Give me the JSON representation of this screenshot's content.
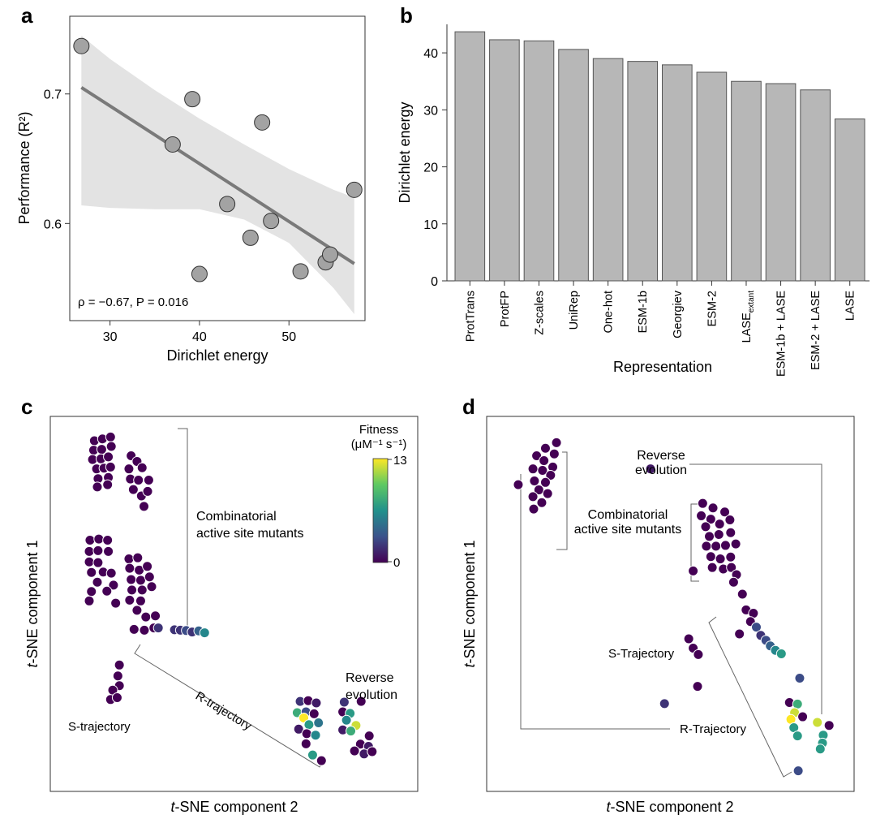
{
  "colors": {
    "point_fill": "#a3a3a3",
    "line": "#7a7a7a",
    "band": "#e3e3e3",
    "bar": "#b7b7b7",
    "viridis": [
      "#440154",
      "#3b528b",
      "#21918c",
      "#5ec962",
      "#fde725"
    ]
  },
  "panels": {
    "a": {
      "letter": "a",
      "annotation": "ρ = −0.67, P = 0.016"
    },
    "b": {
      "letter": "b"
    },
    "c": {
      "letter": "c"
    },
    "d": {
      "letter": "d"
    }
  },
  "chart_data": [
    {
      "panel": "a",
      "type": "scatter",
      "xlabel": "Dirichlet energy",
      "ylabel": "Performance (R²)",
      "xlim": [
        25.5,
        58.5
      ],
      "ylim": [
        0.525,
        0.76
      ],
      "xticks": [
        30,
        40,
        50
      ],
      "yticks": [
        0.6,
        0.7
      ],
      "points": [
        {
          "x": 26.8,
          "y": 0.737
        },
        {
          "x": 37.0,
          "y": 0.661
        },
        {
          "x": 39.2,
          "y": 0.696
        },
        {
          "x": 40.0,
          "y": 0.561
        },
        {
          "x": 43.1,
          "y": 0.615
        },
        {
          "x": 45.7,
          "y": 0.589
        },
        {
          "x": 47.0,
          "y": 0.678
        },
        {
          "x": 48.0,
          "y": 0.602
        },
        {
          "x": 51.3,
          "y": 0.563
        },
        {
          "x": 54.1,
          "y": 0.57
        },
        {
          "x": 54.6,
          "y": 0.576
        },
        {
          "x": 57.3,
          "y": 0.626
        }
      ],
      "fit": {
        "x": [
          26.8,
          57.3
        ],
        "y": [
          0.705,
          0.569
        ]
      },
      "band": {
        "x": [
          26.8,
          30,
          35,
          40,
          45,
          50,
          55,
          57.3
        ],
        "upper": [
          0.745,
          0.727,
          0.703,
          0.681,
          0.661,
          0.642,
          0.626,
          0.62
        ],
        "lower": [
          0.614,
          0.612,
          0.611,
          0.611,
          0.603,
          0.585,
          0.55,
          0.53
        ]
      },
      "grid": false
    },
    {
      "panel": "b",
      "type": "bar",
      "xlabel": "Representation",
      "ylabel": "Dirichlet energy",
      "ylim": [
        0,
        45
      ],
      "yticks": [
        0,
        10,
        20,
        30,
        40
      ],
      "categories": [
        {
          "main": "ProtTrans",
          "sub": ""
        },
        {
          "main": "ProtFP",
          "sub": ""
        },
        {
          "main": "Z-scales",
          "sub": ""
        },
        {
          "main": "UniRep",
          "sub": ""
        },
        {
          "main": "One-hot",
          "sub": ""
        },
        {
          "main": "ESM-1b",
          "sub": ""
        },
        {
          "main": "Georgiev",
          "sub": ""
        },
        {
          "main": "ESM-2",
          "sub": ""
        },
        {
          "main": "LASE",
          "sub": "extant"
        },
        {
          "main": "ESM-1b + LASE",
          "sub": ""
        },
        {
          "main": "ESM-2 + LASE",
          "sub": ""
        },
        {
          "main": "LASE",
          "sub": ""
        }
      ],
      "values": [
        43.7,
        42.3,
        42.1,
        40.6,
        39.0,
        38.5,
        37.9,
        36.6,
        35.0,
        34.6,
        33.5,
        28.4
      ],
      "grid": false
    },
    {
      "panel": "c",
      "type": "scatter",
      "xlabel": "t-SNE component 2",
      "ylabel": "t-SNE component 1",
      "ylabel_italic": "t",
      "ylabel_rest": "-SNE component 1",
      "xlabel_italic": "t",
      "xlabel_rest": "-SNE component 2",
      "xlim": [
        0,
        100
      ],
      "ylim": [
        0,
        100
      ],
      "colorbar": {
        "title_1": "Fitness",
        "title_2": "(μM⁻¹ s⁻¹)",
        "min": 0,
        "max": 13,
        "min_label": "0",
        "max_label": "13"
      },
      "annotations": [
        "Combinatorial",
        "active site mutants",
        "R-trajectory",
        "S-trajectory",
        "Reverse",
        "evolution"
      ],
      "points": [
        {
          "x": 12.0,
          "y": 93.5,
          "f": 0
        },
        {
          "x": 14.2,
          "y": 94.0,
          "f": 0
        },
        {
          "x": 16.4,
          "y": 94.5,
          "f": 0
        },
        {
          "x": 11.8,
          "y": 91.0,
          "f": 0
        },
        {
          "x": 14.0,
          "y": 91.2,
          "f": 0
        },
        {
          "x": 16.6,
          "y": 92.0,
          "f": 0
        },
        {
          "x": 11.5,
          "y": 88.5,
          "f": 0
        },
        {
          "x": 13.8,
          "y": 88.7,
          "f": 0
        },
        {
          "x": 15.8,
          "y": 89.2,
          "f": 0
        },
        {
          "x": 12.6,
          "y": 86.0,
          "f": 0
        },
        {
          "x": 14.6,
          "y": 86.2,
          "f": 0
        },
        {
          "x": 16.4,
          "y": 86.5,
          "f": 0
        },
        {
          "x": 13.0,
          "y": 83.4,
          "f": 0
        },
        {
          "x": 15.8,
          "y": 83.7,
          "f": 0
        },
        {
          "x": 12.8,
          "y": 81.2,
          "f": 0
        },
        {
          "x": 15.6,
          "y": 81.8,
          "f": 0
        },
        {
          "x": 22.0,
          "y": 89.5,
          "f": 0
        },
        {
          "x": 23.6,
          "y": 88.0,
          "f": 0
        },
        {
          "x": 21.4,
          "y": 86.0,
          "f": 0
        },
        {
          "x": 25.0,
          "y": 86.3,
          "f": 0
        },
        {
          "x": 21.8,
          "y": 83.3,
          "f": 0
        },
        {
          "x": 24.0,
          "y": 83.0,
          "f": 0
        },
        {
          "x": 26.8,
          "y": 83.0,
          "f": 0
        },
        {
          "x": 22.6,
          "y": 80.5,
          "f": 0
        },
        {
          "x": 24.8,
          "y": 78.8,
          "f": 0
        },
        {
          "x": 26.5,
          "y": 80.0,
          "f": 0
        },
        {
          "x": 25.5,
          "y": 76.0,
          "f": 0
        },
        {
          "x": 10.8,
          "y": 67.0,
          "f": 0
        },
        {
          "x": 13.2,
          "y": 67.3,
          "f": 0
        },
        {
          "x": 15.6,
          "y": 67.0,
          "f": 0
        },
        {
          "x": 10.6,
          "y": 64.0,
          "f": 0
        },
        {
          "x": 13.0,
          "y": 64.2,
          "f": 0
        },
        {
          "x": 15.8,
          "y": 64.0,
          "f": 0
        },
        {
          "x": 10.6,
          "y": 61.2,
          "f": 0
        },
        {
          "x": 13.0,
          "y": 61.0,
          "f": 0
        },
        {
          "x": 11.2,
          "y": 58.4,
          "f": 0
        },
        {
          "x": 14.4,
          "y": 58.5,
          "f": 0
        },
        {
          "x": 16.6,
          "y": 58.2,
          "f": 0
        },
        {
          "x": 12.8,
          "y": 55.8,
          "f": 0
        },
        {
          "x": 17.2,
          "y": 55.0,
          "f": 0
        },
        {
          "x": 11.2,
          "y": 53.3,
          "f": 0
        },
        {
          "x": 15.4,
          "y": 53.4,
          "f": 0
        },
        {
          "x": 10.6,
          "y": 50.8,
          "f": 0
        },
        {
          "x": 17.8,
          "y": 50.2,
          "f": 0
        },
        {
          "x": 21.4,
          "y": 62.0,
          "f": 0
        },
        {
          "x": 23.8,
          "y": 62.3,
          "f": 0
        },
        {
          "x": 21.6,
          "y": 59.5,
          "f": 0
        },
        {
          "x": 24.2,
          "y": 59.0,
          "f": 0
        },
        {
          "x": 26.4,
          "y": 60.0,
          "f": 0
        },
        {
          "x": 22.0,
          "y": 56.5,
          "f": 0
        },
        {
          "x": 24.6,
          "y": 56.3,
          "f": 0
        },
        {
          "x": 27.0,
          "y": 57.2,
          "f": 0
        },
        {
          "x": 22.2,
          "y": 53.7,
          "f": 0
        },
        {
          "x": 25.0,
          "y": 53.7,
          "f": 0
        },
        {
          "x": 27.6,
          "y": 54.6,
          "f": 0
        },
        {
          "x": 21.6,
          "y": 51.0,
          "f": 0
        },
        {
          "x": 24.6,
          "y": 50.8,
          "f": 0
        },
        {
          "x": 23.6,
          "y": 48.3,
          "f": 0
        },
        {
          "x": 26.0,
          "y": 46.5,
          "f": 0
        },
        {
          "x": 28.6,
          "y": 46.8,
          "f": 0
        },
        {
          "x": 25.6,
          "y": 43.0,
          "f": 0
        },
        {
          "x": 28.2,
          "y": 43.6,
          "f": 0
        },
        {
          "x": 22.8,
          "y": 43.2,
          "f": 0
        },
        {
          "x": 29.4,
          "y": 43.6,
          "f": 2
        },
        {
          "x": 33.8,
          "y": 43.1,
          "f": 2
        },
        {
          "x": 35.4,
          "y": 43.0,
          "f": 2
        },
        {
          "x": 37.0,
          "y": 42.9,
          "f": 3
        },
        {
          "x": 38.6,
          "y": 42.5,
          "f": 2
        },
        {
          "x": 40.4,
          "y": 42.8,
          "f": 4
        },
        {
          "x": 42.0,
          "y": 42.3,
          "f": 6
        },
        {
          "x": 18.8,
          "y": 33.7,
          "f": 0
        },
        {
          "x": 18.4,
          "y": 30.8,
          "f": 0
        },
        {
          "x": 18.8,
          "y": 28.2,
          "f": 0
        },
        {
          "x": 17.0,
          "y": 27.0,
          "f": 0
        },
        {
          "x": 16.4,
          "y": 24.5,
          "f": 0
        },
        {
          "x": 18.2,
          "y": 25.0,
          "f": 0
        },
        {
          "x": 68.0,
          "y": 24.0,
          "f": 2
        },
        {
          "x": 70.2,
          "y": 24.2,
          "f": 0
        },
        {
          "x": 72.4,
          "y": 23.6,
          "f": 1
        },
        {
          "x": 67.2,
          "y": 21.0,
          "f": 8
        },
        {
          "x": 69.6,
          "y": 21.2,
          "f": 3
        },
        {
          "x": 71.8,
          "y": 20.7,
          "f": 0
        },
        {
          "x": 69.0,
          "y": 19.6,
          "f": 13
        },
        {
          "x": 73.0,
          "y": 18.3,
          "f": 5
        },
        {
          "x": 70.4,
          "y": 17.8,
          "f": 7
        },
        {
          "x": 67.6,
          "y": 16.6,
          "f": 1
        },
        {
          "x": 69.8,
          "y": 15.4,
          "f": 0
        },
        {
          "x": 72.2,
          "y": 15.0,
          "f": 6
        },
        {
          "x": 69.6,
          "y": 12.7,
          "f": 0
        },
        {
          "x": 71.4,
          "y": 9.7,
          "f": 7
        },
        {
          "x": 73.8,
          "y": 8.2,
          "f": 0
        },
        {
          "x": 80.0,
          "y": 23.8,
          "f": 2
        },
        {
          "x": 84.6,
          "y": 24.0,
          "f": 0
        },
        {
          "x": 79.6,
          "y": 21.2,
          "f": 0
        },
        {
          "x": 81.6,
          "y": 20.8,
          "f": 7
        },
        {
          "x": 80.6,
          "y": 19.0,
          "f": 6
        },
        {
          "x": 83.2,
          "y": 17.6,
          "f": 12
        },
        {
          "x": 79.6,
          "y": 16.4,
          "f": 1
        },
        {
          "x": 81.8,
          "y": 16.1,
          "f": 8
        },
        {
          "x": 86.8,
          "y": 14.8,
          "f": 0
        },
        {
          "x": 84.4,
          "y": 12.6,
          "f": 0
        },
        {
          "x": 86.6,
          "y": 12.0,
          "f": 1
        },
        {
          "x": 82.8,
          "y": 10.8,
          "f": 0
        },
        {
          "x": 85.4,
          "y": 10.0,
          "f": 1
        },
        {
          "x": 87.6,
          "y": 10.6,
          "f": 0
        }
      ]
    },
    {
      "panel": "d",
      "type": "scatter",
      "xlabel": "t-SNE component 2",
      "ylabel": "t-SNE component 1",
      "xlabel_italic": "t",
      "xlabel_rest": "-SNE component 2",
      "ylabel_italic": "t",
      "ylabel_rest": "-SNE component 1",
      "xlim": [
        0,
        100
      ],
      "ylim": [
        0,
        100
      ],
      "annotations": [
        "Reverse",
        "evolution",
        "Combinatorial",
        "active site mutants",
        "S-Trajectory",
        "R-Trajectory"
      ],
      "points": [
        {
          "x": 19.0,
          "y": 93.0,
          "f": 0
        },
        {
          "x": 16.0,
          "y": 91.5,
          "f": 0
        },
        {
          "x": 18.4,
          "y": 90.0,
          "f": 0
        },
        {
          "x": 13.6,
          "y": 89.5,
          "f": 0
        },
        {
          "x": 15.6,
          "y": 88.2,
          "f": 0
        },
        {
          "x": 18.0,
          "y": 86.5,
          "f": 0
        },
        {
          "x": 12.6,
          "y": 86.0,
          "f": 0
        },
        {
          "x": 15.2,
          "y": 85.6,
          "f": 0
        },
        {
          "x": 17.4,
          "y": 84.3,
          "f": 0
        },
        {
          "x": 13.0,
          "y": 82.8,
          "f": 0
        },
        {
          "x": 16.0,
          "y": 82.4,
          "f": 0
        },
        {
          "x": 8.6,
          "y": 81.8,
          "f": 0
        },
        {
          "x": 14.2,
          "y": 80.4,
          "f": 0
        },
        {
          "x": 16.6,
          "y": 79.4,
          "f": 0
        },
        {
          "x": 12.6,
          "y": 78.6,
          "f": 0
        },
        {
          "x": 15.0,
          "y": 77.0,
          "f": 0
        },
        {
          "x": 12.8,
          "y": 75.3,
          "f": 0
        },
        {
          "x": 44.6,
          "y": 86.0,
          "f": 1
        },
        {
          "x": 58.8,
          "y": 76.8,
          "f": 0
        },
        {
          "x": 61.6,
          "y": 75.6,
          "f": 0
        },
        {
          "x": 58.4,
          "y": 73.5,
          "f": 0
        },
        {
          "x": 61.0,
          "y": 72.6,
          "f": 0
        },
        {
          "x": 64.8,
          "y": 74.5,
          "f": 0
        },
        {
          "x": 59.6,
          "y": 70.6,
          "f": 0
        },
        {
          "x": 63.4,
          "y": 71.3,
          "f": 0
        },
        {
          "x": 66.2,
          "y": 72.4,
          "f": 0
        },
        {
          "x": 60.6,
          "y": 68.0,
          "f": 0
        },
        {
          "x": 63.2,
          "y": 68.5,
          "f": 0
        },
        {
          "x": 66.4,
          "y": 69.0,
          "f": 0
        },
        {
          "x": 59.8,
          "y": 65.4,
          "f": 0
        },
        {
          "x": 62.4,
          "y": 65.4,
          "f": 0
        },
        {
          "x": 65.0,
          "y": 65.6,
          "f": 0
        },
        {
          "x": 67.8,
          "y": 66.0,
          "f": 0
        },
        {
          "x": 61.0,
          "y": 62.6,
          "f": 0
        },
        {
          "x": 63.6,
          "y": 62.0,
          "f": 0
        },
        {
          "x": 66.4,
          "y": 62.5,
          "f": 0
        },
        {
          "x": 61.4,
          "y": 59.7,
          "f": 0
        },
        {
          "x": 64.4,
          "y": 59.3,
          "f": 0
        },
        {
          "x": 66.6,
          "y": 59.7,
          "f": 0
        },
        {
          "x": 68.0,
          "y": 57.8,
          "f": 0
        },
        {
          "x": 56.2,
          "y": 58.8,
          "f": 0
        },
        {
          "x": 67.2,
          "y": 55.8,
          "f": 0
        },
        {
          "x": 69.6,
          "y": 52.6,
          "f": 0
        },
        {
          "x": 70.6,
          "y": 48.4,
          "f": 0
        },
        {
          "x": 72.6,
          "y": 47.5,
          "f": 0
        },
        {
          "x": 71.8,
          "y": 45.3,
          "f": 0
        },
        {
          "x": 73.4,
          "y": 43.8,
          "f": 3
        },
        {
          "x": 68.8,
          "y": 42.0,
          "f": 0
        },
        {
          "x": 74.6,
          "y": 41.6,
          "f": 2
        },
        {
          "x": 76.0,
          "y": 40.3,
          "f": 3
        },
        {
          "x": 77.2,
          "y": 38.8,
          "f": 4
        },
        {
          "x": 78.6,
          "y": 37.6,
          "f": 6
        },
        {
          "x": 80.2,
          "y": 36.7,
          "f": 7
        },
        {
          "x": 55.0,
          "y": 40.7,
          "f": 0
        },
        {
          "x": 56.2,
          "y": 38.2,
          "f": 0
        },
        {
          "x": 57.6,
          "y": 36.5,
          "f": 0
        },
        {
          "x": 57.4,
          "y": 28.0,
          "f": 0
        },
        {
          "x": 48.4,
          "y": 23.4,
          "f": 2
        },
        {
          "x": 85.2,
          "y": 30.2,
          "f": 3
        },
        {
          "x": 82.4,
          "y": 23.7,
          "f": 0
        },
        {
          "x": 84.6,
          "y": 23.3,
          "f": 8
        },
        {
          "x": 83.8,
          "y": 21.0,
          "f": 12
        },
        {
          "x": 86.0,
          "y": 19.9,
          "f": 0
        },
        {
          "x": 82.8,
          "y": 19.2,
          "f": 13
        },
        {
          "x": 83.6,
          "y": 17.0,
          "f": 7
        },
        {
          "x": 84.6,
          "y": 14.8,
          "f": 7
        },
        {
          "x": 90.0,
          "y": 18.4,
          "f": 12
        },
        {
          "x": 93.2,
          "y": 17.6,
          "f": 0
        },
        {
          "x": 91.6,
          "y": 15.0,
          "f": 7
        },
        {
          "x": 91.4,
          "y": 12.9,
          "f": 7
        },
        {
          "x": 90.8,
          "y": 11.3,
          "f": 7
        },
        {
          "x": 84.8,
          "y": 5.5,
          "f": 3
        }
      ]
    }
  ]
}
